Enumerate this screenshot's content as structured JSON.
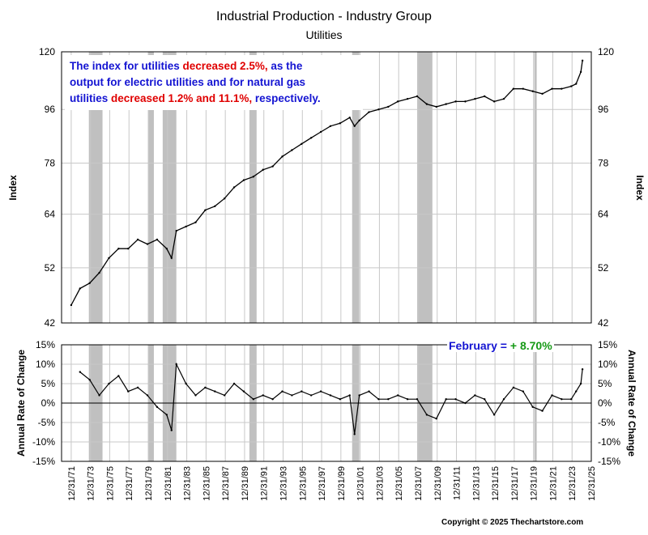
{
  "chart_data": [
    {
      "type": "line",
      "title": "Industrial Production - Industry Group",
      "subtitle": "Utilities",
      "ylabel": "Index",
      "ylim": [
        42,
        120
      ],
      "yticks": [
        42,
        52,
        64,
        78,
        96,
        120
      ],
      "y_scale": "log",
      "grid": true,
      "x_range": [
        "1970-12-31",
        "2025-12-31"
      ],
      "series": [
        {
          "x": [
            "1972-01",
            "1972-12",
            "1973-12",
            "1974-12",
            "1975-12",
            "1976-12",
            "1977-12",
            "1978-12",
            "1979-12",
            "1980-12",
            "1981-12",
            "1982-06",
            "1982-12",
            "1983-12",
            "1984-12",
            "1985-12",
            "1986-12",
            "1987-12",
            "1988-12",
            "1989-12",
            "1990-12",
            "1991-12",
            "1992-12",
            "1993-12",
            "1994-12",
            "1995-12",
            "1996-12",
            "1997-12",
            "1998-12",
            "1999-12",
            "2000-12",
            "2001-06",
            "2001-12",
            "2002-12",
            "2003-12",
            "2004-12",
            "2005-12",
            "2006-12",
            "2007-12",
            "2008-12",
            "2009-12",
            "2010-12",
            "2011-12",
            "2012-12",
            "2013-12",
            "2014-12",
            "2015-12",
            "2016-12",
            "2017-12",
            "2018-12",
            "2019-12",
            "2020-12",
            "2021-12",
            "2022-12",
            "2023-12",
            "2024-06",
            "2024-12",
            "2025-02"
          ],
          "values": [
            45,
            48,
            49,
            51,
            54,
            56,
            56,
            58,
            57,
            58,
            56,
            54,
            60,
            61,
            62,
            65,
            66,
            68,
            71,
            73,
            74,
            76,
            77,
            80,
            82,
            84,
            86,
            88,
            90,
            91,
            93,
            90,
            92,
            95,
            96,
            97,
            99,
            100,
            101,
            98,
            97,
            98,
            99,
            99,
            100,
            101,
            99,
            100,
            104,
            104,
            103,
            102,
            104,
            104,
            105,
            106,
            111,
            116
          ]
        }
      ],
      "shaded_recessions": [
        [
          "1973-11",
          "1975-03"
        ],
        [
          "1980-01",
          "1980-07"
        ],
        [
          "1981-07",
          "1982-11"
        ],
        [
          "1990-07",
          "1991-03"
        ],
        [
          "2001-03",
          "2001-11"
        ],
        [
          "2007-12",
          "2009-06"
        ],
        [
          "2020-02",
          "2020-04"
        ]
      ]
    },
    {
      "type": "line",
      "ylabel": "Annual Rate of Change",
      "ylim": [
        -15,
        15
      ],
      "yticks": [
        "15%",
        "10%",
        "5%",
        "0%",
        "-5%",
        "-10%",
        "-15%"
      ],
      "grid": true,
      "series": [
        {
          "x": [
            "1972-12",
            "1973-12",
            "1974-12",
            "1975-12",
            "1976-12",
            "1977-12",
            "1978-12",
            "1979-12",
            "1980-12",
            "1981-12",
            "1982-06",
            "1982-12",
            "1983-12",
            "1984-12",
            "1985-12",
            "1986-12",
            "1987-12",
            "1988-12",
            "1989-12",
            "1990-12",
            "1991-12",
            "1992-12",
            "1993-12",
            "1994-12",
            "1995-12",
            "1996-12",
            "1997-12",
            "1998-12",
            "1999-12",
            "2000-12",
            "2001-06",
            "2001-12",
            "2002-12",
            "2003-12",
            "2004-12",
            "2005-12",
            "2006-12",
            "2007-12",
            "2008-12",
            "2009-12",
            "2010-12",
            "2011-12",
            "2012-12",
            "2013-12",
            "2014-12",
            "2015-12",
            "2016-12",
            "2017-12",
            "2018-12",
            "2019-12",
            "2020-12",
            "2021-12",
            "2022-12",
            "2023-12",
            "2024-06",
            "2024-12",
            "2025-02"
          ],
          "values": [
            8,
            6,
            2,
            5,
            7,
            3,
            4,
            2,
            -1,
            -3,
            -7,
            10,
            5,
            2,
            4,
            3,
            2,
            5,
            3,
            1,
            2,
            1,
            3,
            2,
            3,
            2,
            3,
            2,
            1,
            2,
            -8,
            2,
            3,
            1,
            1,
            2,
            1,
            1,
            -3,
            -4,
            1,
            1,
            0,
            2,
            1,
            -3,
            1,
            4,
            3,
            -1,
            -2,
            2,
            1,
            1,
            3,
            5,
            8.7
          ]
        }
      ],
      "shaded_recessions": [
        [
          "1973-11",
          "1975-03"
        ],
        [
          "1980-01",
          "1980-07"
        ],
        [
          "1981-07",
          "1982-11"
        ],
        [
          "1990-07",
          "1991-03"
        ],
        [
          "2001-03",
          "2001-11"
        ],
        [
          "2007-12",
          "2009-06"
        ],
        [
          "2020-02",
          "2020-04"
        ]
      ]
    }
  ],
  "annotation": {
    "line1_pre": "The index for utilities ",
    "line1_red": "decreased 2.5%,",
    "line1_post": " as the",
    "line2": "output for electric utilities and for natural gas",
    "line3_pre": "utilities ",
    "line3_red": "decreased 1.2% and 11.1%,",
    "line3_post": " respectively."
  },
  "latest_label": {
    "prefix": "February = ",
    "value": "+ 8.70%"
  },
  "x_tick_labels": [
    "12/31/71",
    "12/31/73",
    "12/31/75",
    "12/31/77",
    "12/31/79",
    "12/31/81",
    "12/31/83",
    "12/31/85",
    "12/31/87",
    "12/31/89",
    "12/31/91",
    "12/31/93",
    "12/31/95",
    "12/31/97",
    "12/31/99",
    "12/31/01",
    "12/31/03",
    "12/31/05",
    "12/31/07",
    "12/31/09",
    "12/31/11",
    "12/31/13",
    "12/31/15",
    "12/31/17",
    "12/31/19",
    "12/31/21",
    "12/31/23",
    "12/31/25"
  ],
  "copyright": "Copyright © 2025 Thechartstore.com",
  "colors": {
    "recession": "#c0c0c0",
    "line": "#000000",
    "grid": "#c8c8c8",
    "note_blue": "#1414d2",
    "note_red": "#e00000",
    "green": "#169a16"
  }
}
